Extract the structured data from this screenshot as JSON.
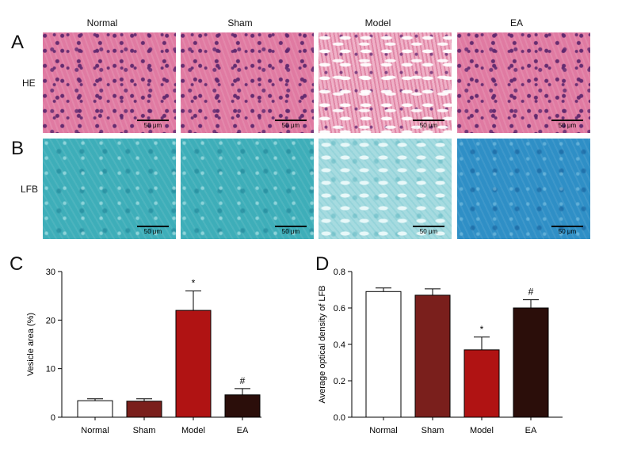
{
  "figure": {
    "panel_letters": [
      "A",
      "B",
      "C",
      "D"
    ],
    "group_labels": [
      "Normal",
      "Sham",
      "Model",
      "EA"
    ],
    "row_labels": {
      "he": "HE",
      "lfb": "LFB"
    },
    "scale_bar_label": "50 μm"
  },
  "colors": {
    "normal": "#ffffff",
    "sham": "#7a1f1c",
    "model": "#b01313",
    "ea": "#2b0e0a"
  },
  "chart_data": [
    {
      "panel": "C",
      "type": "bar",
      "categories": [
        "Normal",
        "Sham",
        "Model",
        "EA"
      ],
      "values": [
        3.4,
        3.3,
        22.0,
        4.6
      ],
      "errors": [
        0.4,
        0.5,
        4.0,
        1.3
      ],
      "annotations": [
        "",
        "",
        "*",
        "#"
      ],
      "xlabel": "",
      "ylabel": "Vesicle area (%)",
      "ylim": [
        0,
        30
      ],
      "yticks": [
        0,
        10,
        20,
        30
      ],
      "grid": false
    },
    {
      "panel": "D",
      "type": "bar",
      "categories": [
        "Normal",
        "Sham",
        "Model",
        "EA"
      ],
      "values": [
        0.69,
        0.67,
        0.37,
        0.6
      ],
      "errors": [
        0.02,
        0.035,
        0.07,
        0.045
      ],
      "annotations": [
        "",
        "",
        "*",
        "#"
      ],
      "xlabel": "",
      "ylabel": "Average optical density of LFB",
      "ylim": [
        0,
        0.8
      ],
      "yticks": [
        "0.0",
        "0.2",
        "0.4",
        "0.6",
        "0.8"
      ],
      "grid": false
    }
  ]
}
